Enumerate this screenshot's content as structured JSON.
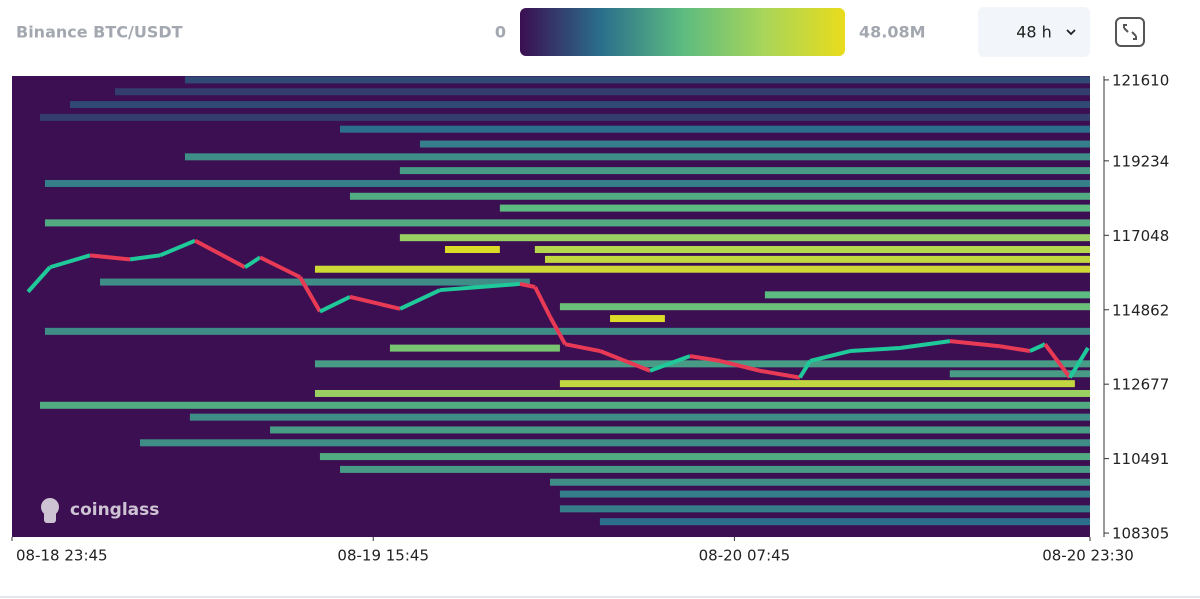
{
  "chart_data": {
    "type": "heatmap",
    "title": "Binance BTC/USDT",
    "range_selector": "48 h",
    "watermark": "coinglass",
    "colorscale": [
      "#3b0f52",
      "#2b6f8c",
      "#5cbb80",
      "#a8d55a",
      "#e9dc1c"
    ],
    "zlim": [
      0,
      48.08
    ],
    "zticks": [
      0,
      {
        "value": 48.08,
        "label": "48.08M"
      }
    ],
    "xlim": [
      0,
      47.75
    ],
    "xticks": [
      {
        "value": 0,
        "label": "08-18 23:45"
      },
      {
        "value": 16,
        "label": "08-19 15:45"
      },
      {
        "value": 32,
        "label": "08-20 07:45"
      },
      {
        "value": 47.75,
        "label": "08-20 23:30"
      }
    ],
    "ylim": [
      108190,
      121725
    ],
    "yticks": [
      121610,
      119234,
      117048,
      114862,
      112677,
      110491,
      108305
    ],
    "bands": [
      {
        "y": 121610,
        "x0": 7.66,
        "x1": 47.75,
        "z": 7.2
      },
      {
        "y": 121263,
        "x0": 4.56,
        "x1": 47.75,
        "z": 5.8
      },
      {
        "y": 120886,
        "x0": 2.57,
        "x1": 47.75,
        "z": 7.2
      },
      {
        "y": 120510,
        "x0": 1.24,
        "x1": 47.75,
        "z": 5.8
      },
      {
        "y": 120163,
        "x0": 14.53,
        "x1": 47.75,
        "z": 12.0
      },
      {
        "y": 119728,
        "x0": 18.07,
        "x1": 47.75,
        "z": 14.4
      },
      {
        "y": 119352,
        "x0": 7.66,
        "x1": 47.75,
        "z": 16.8
      },
      {
        "y": 118947,
        "x0": 17.18,
        "x1": 47.75,
        "z": 19.2
      },
      {
        "y": 118570,
        "x0": 1.46,
        "x1": 47.75,
        "z": 14.4
      },
      {
        "y": 118194,
        "x0": 14.97,
        "x1": 47.75,
        "z": 21.6
      },
      {
        "y": 117847,
        "x0": 21.61,
        "x1": 47.75,
        "z": 24.0
      },
      {
        "y": 117412,
        "x0": 1.46,
        "x1": 47.75,
        "z": 21.6
      },
      {
        "y": 116978,
        "x0": 17.18,
        "x1": 47.75,
        "z": 33.7
      },
      {
        "y": 116631,
        "x0": 19.18,
        "x1": 21.61,
        "z": 45.7
      },
      {
        "y": 116631,
        "x0": 23.16,
        "x1": 47.75,
        "z": 38.5
      },
      {
        "y": 116341,
        "x0": 23.61,
        "x1": 47.75,
        "z": 40.9
      },
      {
        "y": 116052,
        "x0": 13.42,
        "x1": 47.75,
        "z": 43.3
      },
      {
        "y": 115675,
        "x0": 3.9,
        "x1": 22.94,
        "z": 16.8
      },
      {
        "y": 115299,
        "x0": 33.35,
        "x1": 47.75,
        "z": 24.0
      },
      {
        "y": 114952,
        "x0": 24.27,
        "x1": 47.75,
        "z": 26.4
      },
      {
        "y": 114604,
        "x0": 26.49,
        "x1": 28.92,
        "z": 45.7
      },
      {
        "y": 114228,
        "x0": 1.46,
        "x1": 47.75,
        "z": 16.8
      },
      {
        "y": 113736,
        "x0": 16.74,
        "x1": 24.27,
        "z": 28.8
      },
      {
        "y": 113274,
        "x0": 13.42,
        "x1": 47.75,
        "z": 19.2
      },
      {
        "y": 112983,
        "x0": 41.54,
        "x1": 47.75,
        "z": 19.2
      },
      {
        "y": 112693,
        "x0": 24.27,
        "x1": 47.08,
        "z": 40.9
      },
      {
        "y": 112404,
        "x0": 13.42,
        "x1": 47.75,
        "z": 33.7
      },
      {
        "y": 112057,
        "x0": 1.24,
        "x1": 47.75,
        "z": 21.6
      },
      {
        "y": 111709,
        "x0": 7.88,
        "x1": 47.75,
        "z": 16.8
      },
      {
        "y": 111333,
        "x0": 11.43,
        "x1": 47.75,
        "z": 19.2
      },
      {
        "y": 110956,
        "x0": 5.67,
        "x1": 47.75,
        "z": 16.8
      },
      {
        "y": 110551,
        "x0": 13.64,
        "x1": 47.75,
        "z": 21.6
      },
      {
        "y": 110175,
        "x0": 14.53,
        "x1": 47.75,
        "z": 19.2
      },
      {
        "y": 109798,
        "x0": 23.83,
        "x1": 47.75,
        "z": 16.8
      },
      {
        "y": 109451,
        "x0": 24.27,
        "x1": 47.75,
        "z": 14.4
      },
      {
        "y": 109017,
        "x0": 24.27,
        "x1": 47.75,
        "z": 14.4
      },
      {
        "y": 108640,
        "x0": 26.04,
        "x1": 47.75,
        "z": 12.0
      }
    ],
    "price": {
      "up_color": "#1fc99a",
      "down_color": "#e83a55",
      "x": [
        0.71,
        1.68,
        3.46,
        5.23,
        6.56,
        8.11,
        10.32,
        10.99,
        12.76,
        13.64,
        14.97,
        17.19,
        18.96,
        20.73,
        22.5,
        23.17,
        23.83,
        24.5,
        26.05,
        28.26,
        30.03,
        31.36,
        33.13,
        34.9,
        35.35,
        37.12,
        39.33,
        41.55,
        43.76,
        45.09,
        45.76,
        46.86,
        47.66
      ],
      "close": [
        115390,
        116110,
        116460,
        116340,
        116460,
        116890,
        116110,
        116400,
        115820,
        114810,
        115240,
        114890,
        115440,
        115530,
        115620,
        115530,
        114660,
        113850,
        113650,
        113070,
        113500,
        113360,
        113070,
        112870,
        113360,
        113650,
        113740,
        113940,
        113790,
        113650,
        113850,
        112870,
        113740
      ]
    }
  }
}
